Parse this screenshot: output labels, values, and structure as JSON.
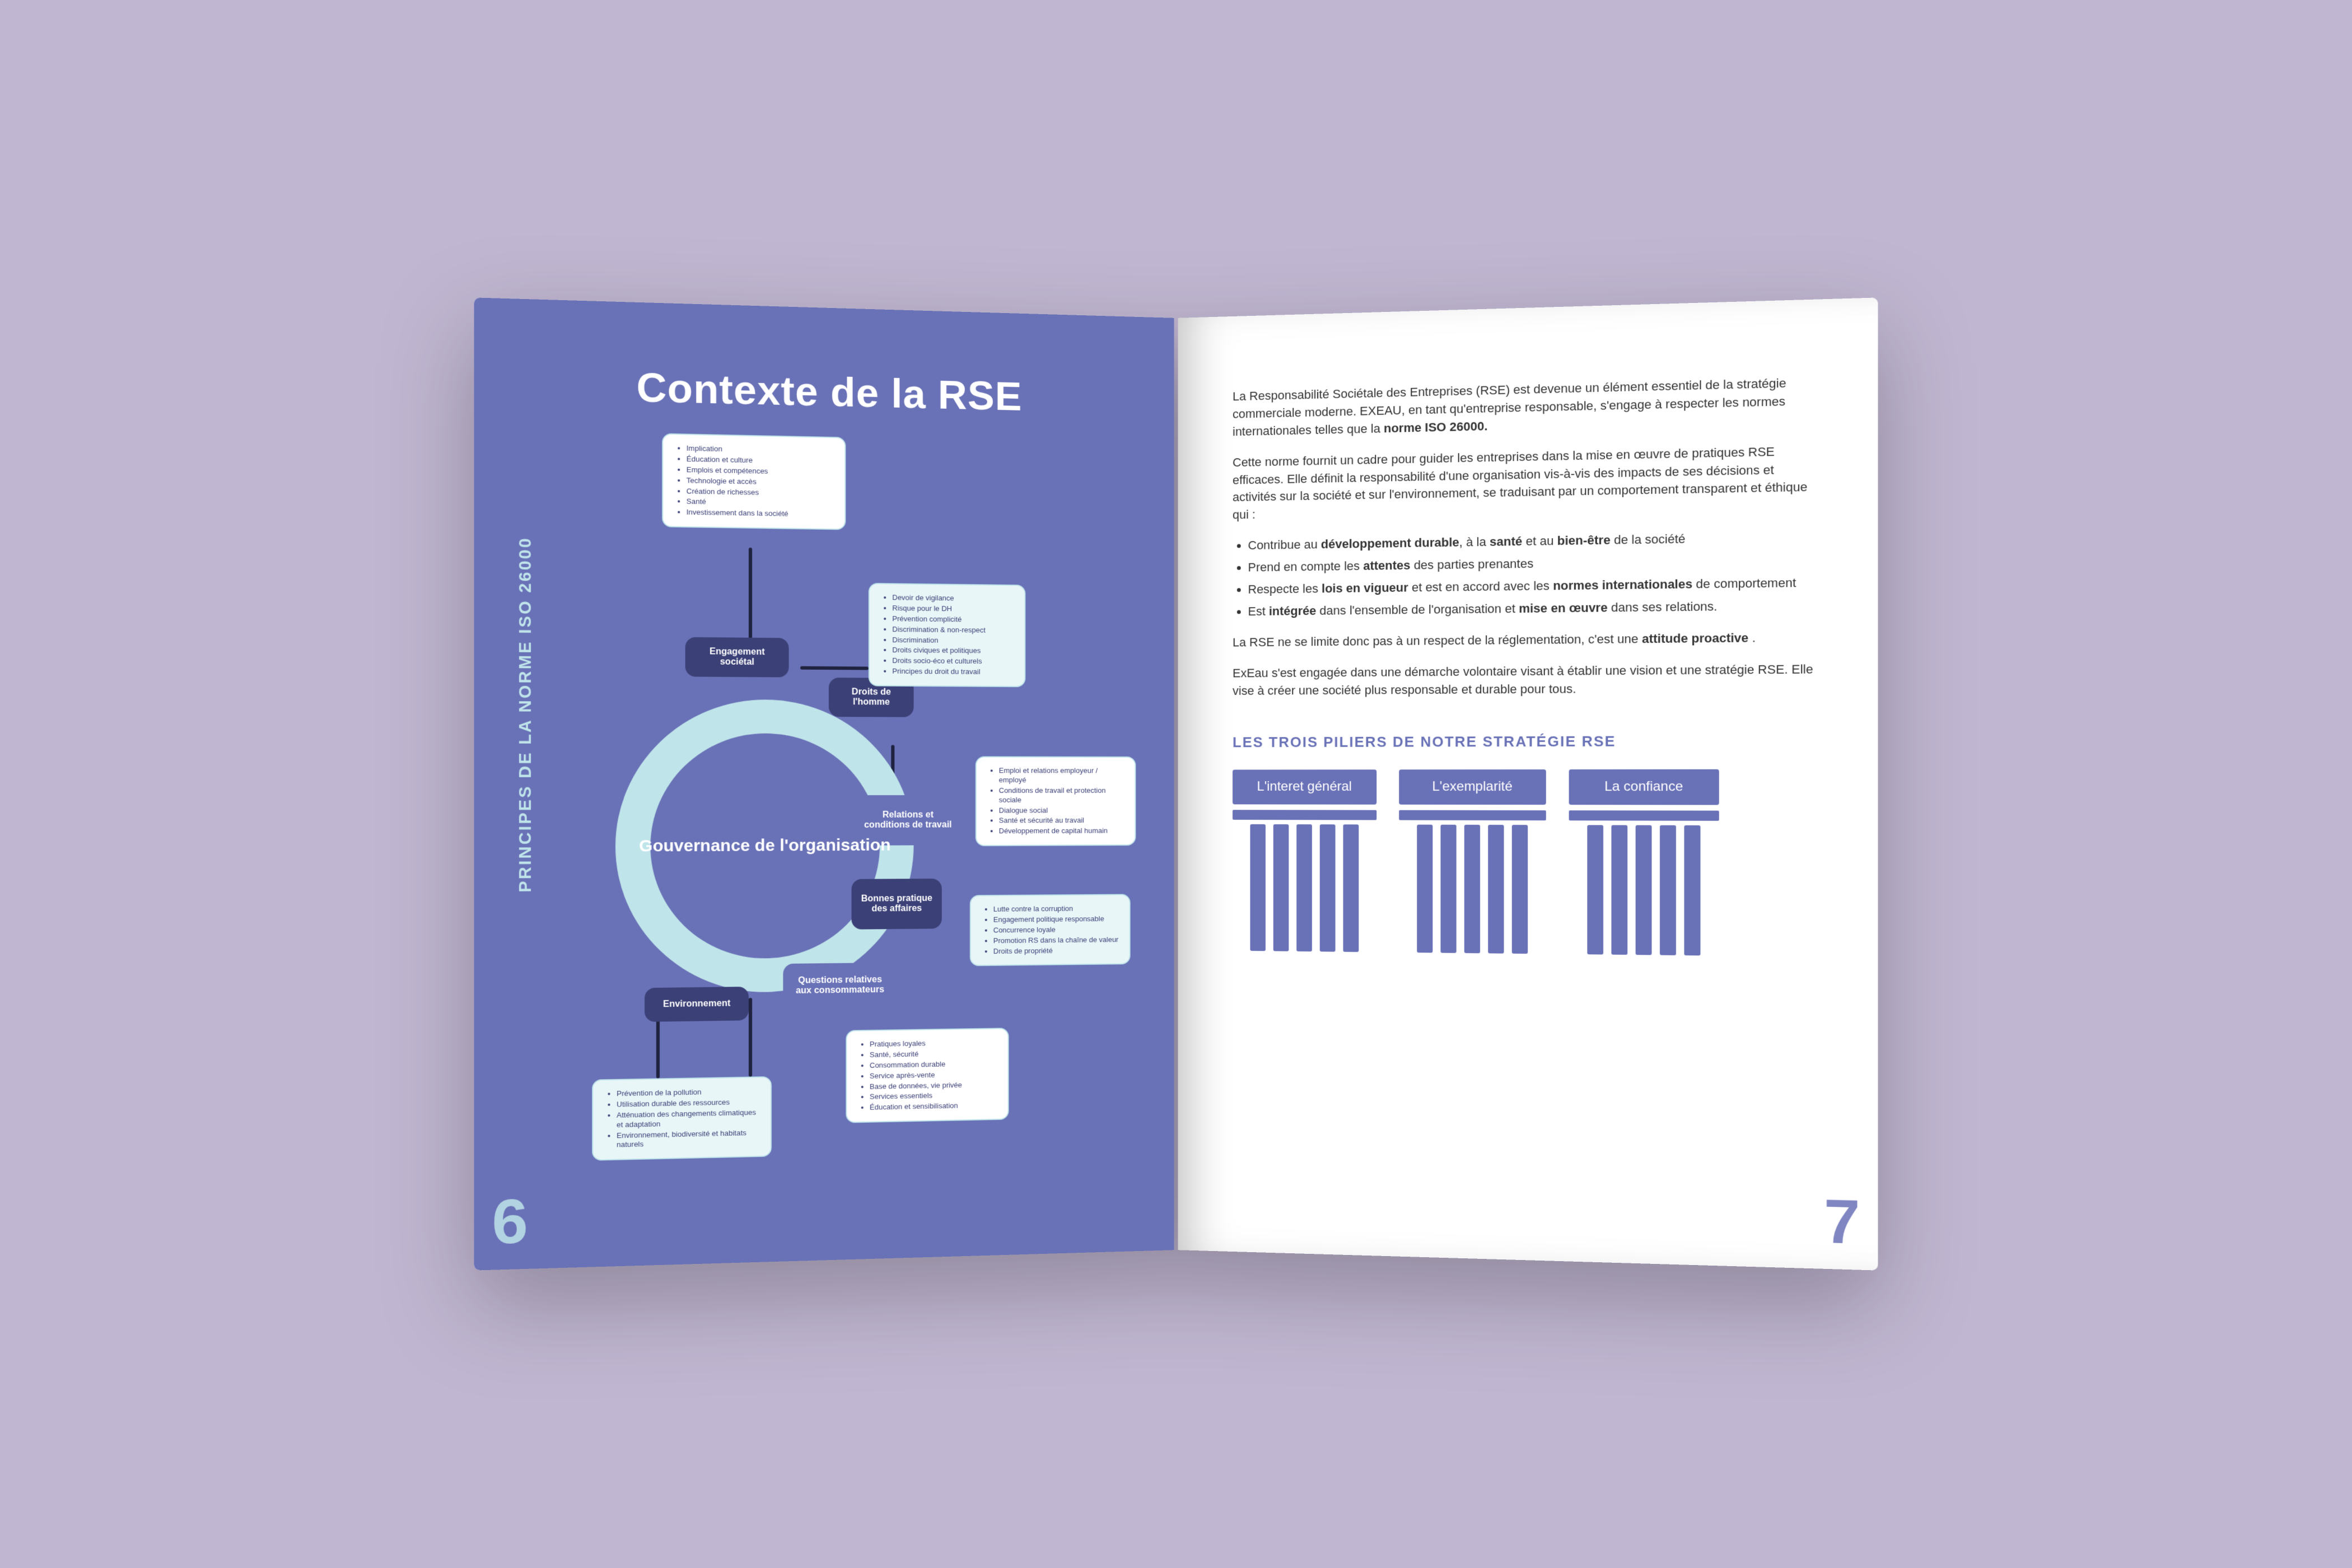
{
  "colors": {
    "page_bg": "#c0b6d1",
    "panel_blue": "#6a72b7",
    "dark_blue": "#3b4077",
    "ice": "#bfe4ea",
    "text": "#333333"
  },
  "left": {
    "title": "Contexte de la RSE",
    "side_label": "PRINCIPES DE LA NORME ISO 26000",
    "page_number": "6",
    "center_label": "Gouvernance de l'organisation",
    "nodes": {
      "engagement": "Engagement sociétal",
      "droits": "Droits de l'homme",
      "relations": "Relations et conditions de travail",
      "bonnes": "Bonnes pratique des affaires",
      "questions": "Questions relatives aux consommateurs",
      "environnement": "Environnement"
    },
    "cards": {
      "top": [
        "Implication",
        "Éducation et culture",
        "Emplois et compétences",
        "Technologie et accès",
        "Création de richesses",
        "Santé",
        "Investissement dans la société"
      ],
      "droits": [
        "Devoir de vigilance",
        "Risque pour le DH",
        "Prévention complicité",
        "Discrimination & non-respect",
        "Discrimination",
        "Droits civiques et politiques",
        "Droits socio-éco et culturels",
        "Principes du droit du travail"
      ],
      "relations": [
        "Emploi et relations employeur / employé",
        "Conditions de travail et protection sociale",
        "Dialogue social",
        "Santé et sécurité au travail",
        "Développement de capital humain"
      ],
      "bonnes": [
        "Lutte contre la corruption",
        "Engagement politique responsable",
        "Concurrence loyale",
        "Promotion RS dans la chaîne de valeur",
        "Droits de propriété"
      ],
      "questions": [
        "Pratiques loyales",
        "Santé, sécurité",
        "Consommation durable",
        "Service après-vente",
        "Base de données, vie privée",
        "Services essentiels",
        "Éducation et sensibilisation"
      ],
      "env": [
        "Prévention de la pollution",
        "Utilisation durable des ressources",
        "Atténuation des changements climatiques et adaptation",
        "Environnement, biodiversité et habitats naturels"
      ]
    }
  },
  "right": {
    "page_number": "7",
    "p1_a": "La Responsabilité Sociétale des Entreprises (RSE) est devenue un élément essentiel de la stratégie commerciale moderne. EXEAU, en tant qu'entreprise responsable, s'engage à respecter les normes internationales telles que la ",
    "p1_b": "norme ISO 26000.",
    "p2": "Cette norme fournit un cadre pour guider les entreprises dans la mise en œuvre de pratiques RSE efficaces. Elle définit la responsabilité d'une organisation vis-à-vis des impacts de ses décisions et activités sur la société et sur l'environnement, se traduisant par un comportement transparent et éthique qui :",
    "bullets": [
      {
        "a": "Contribue au ",
        "b": "développement durable",
        "c": ", à la ",
        "d": "santé",
        "e": " et au ",
        "f": "bien-être",
        "g": " de la société"
      },
      {
        "a": "Prend en compte les ",
        "b": "attentes",
        "c": " des parties prenantes"
      },
      {
        "a": "Respecte les ",
        "b": "lois en vigueur",
        "c": " et est en accord avec les ",
        "d": "normes internationales",
        "e": " de comportement"
      },
      {
        "a": "Est ",
        "b": "intégrée",
        "c": " dans l'ensemble de l'organisation et ",
        "d": "mise en œuvre",
        "e": " dans ses relations."
      }
    ],
    "p3_a": "La RSE ne se limite donc pas à un respect de la réglementation, c'est une ",
    "p3_b": "attitude proactive",
    "p3_c": ".",
    "p4": "ExEau s'est engagée dans une démarche volontaire visant à établir une vision et une stratégie RSE. Elle vise à créer une société plus responsable et durable pour tous.",
    "pillars_title": "LES TROIS PILIERS DE NOTRE STRATÉGIE RSE",
    "pillars": [
      "L'interet général",
      "L'exemplarité",
      "La confiance"
    ]
  }
}
